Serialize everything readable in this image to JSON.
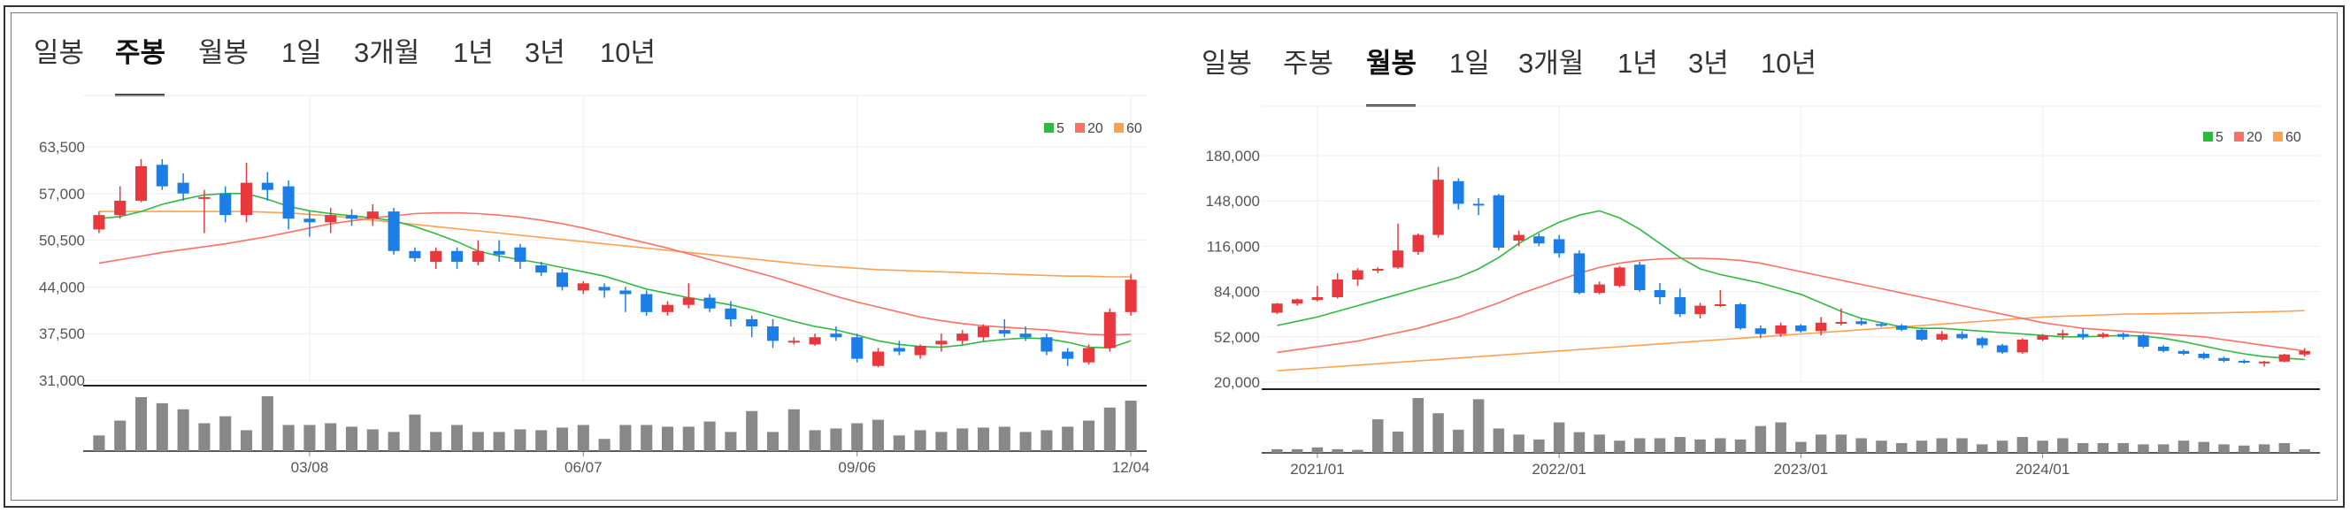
{
  "tabs": [
    "일봉",
    "주봉",
    "월봉",
    "1일",
    "3개월",
    "1년",
    "3년",
    "10년"
  ],
  "colors": {
    "up": "#e8383d",
    "down": "#1a7ee6",
    "ma5": "#30b940",
    "ma20": "#ff6f66",
    "ma60": "#ffa050",
    "volume": "#888888",
    "grid": "#eeeeee",
    "axis": "#222222"
  },
  "chart_data": [
    {
      "type": "candlestick",
      "period": "주봉",
      "active_tab": "주봉",
      "legend": [
        "5",
        "20",
        "60"
      ],
      "y_ticks": [
        "63,500",
        "57,000",
        "50,500",
        "44,000",
        "37,500",
        "31,000"
      ],
      "ylim": [
        31000,
        63500
      ],
      "x_ticks": [
        {
          "label": "03/08",
          "index": 10
        },
        {
          "label": "06/07",
          "index": 23
        },
        {
          "label": "09/06",
          "index": 36
        },
        {
          "label": "12/04",
          "index": 49
        }
      ],
      "ohlc": [
        [
          52000,
          54500,
          51500,
          54000
        ],
        [
          54000,
          58000,
          53500,
          56000
        ],
        [
          56000,
          61800,
          55800,
          60800
        ],
        [
          61000,
          61800,
          57500,
          58000
        ],
        [
          58500,
          59800,
          56000,
          57000
        ],
        [
          56500,
          57500,
          51500,
          56500
        ],
        [
          57000,
          58000,
          53000,
          54000
        ],
        [
          54000,
          61300,
          53000,
          58500
        ],
        [
          58500,
          60000,
          56000,
          57500
        ],
        [
          58000,
          58800,
          52000,
          53500
        ],
        [
          53500,
          54500,
          51000,
          53000
        ],
        [
          53000,
          55000,
          51500,
          54000
        ],
        [
          54000,
          54800,
          52500,
          53500
        ],
        [
          53500,
          55500,
          52500,
          54500
        ],
        [
          54500,
          55000,
          48500,
          49000
        ],
        [
          49000,
          49500,
          47500,
          48000
        ],
        [
          47500,
          49500,
          46500,
          49000
        ],
        [
          49000,
          49500,
          46500,
          47500
        ],
        [
          47500,
          50500,
          47000,
          49000
        ],
        [
          49000,
          50500,
          47500,
          48500
        ],
        [
          49500,
          50000,
          46500,
          47500
        ],
        [
          47000,
          47500,
          45500,
          46000
        ],
        [
          46000,
          46500,
          43500,
          44000
        ],
        [
          43500,
          44800,
          43000,
          44500
        ],
        [
          44000,
          44500,
          42500,
          43500
        ],
        [
          43500,
          44000,
          40500,
          43000
        ],
        [
          43000,
          43500,
          40000,
          40500
        ],
        [
          40500,
          42000,
          40000,
          41500
        ],
        [
          41500,
          44500,
          41000,
          42500
        ],
        [
          42500,
          43000,
          40500,
          41000
        ],
        [
          41000,
          42000,
          38500,
          39500
        ],
        [
          39500,
          40000,
          37000,
          38500
        ],
        [
          38500,
          39500,
          35500,
          36500
        ],
        [
          36500,
          37000,
          36000,
          36500
        ],
        [
          36000,
          37500,
          35800,
          37000
        ],
        [
          37500,
          38500,
          36500,
          37000
        ],
        [
          37000,
          37500,
          33500,
          34000
        ],
        [
          33000,
          35500,
          32800,
          35000
        ],
        [
          35500,
          36500,
          34500,
          35000
        ],
        [
          34500,
          36000,
          34000,
          35800
        ],
        [
          36000,
          37500,
          35000,
          36500
        ],
        [
          36500,
          38000,
          36000,
          37500
        ],
        [
          37000,
          38800,
          36500,
          38500
        ],
        [
          38000,
          39500,
          37000,
          37500
        ],
        [
          37500,
          38500,
          36500,
          37000
        ],
        [
          37000,
          37500,
          34500,
          35000
        ],
        [
          35000,
          35500,
          33000,
          34000
        ],
        [
          33500,
          36000,
          33200,
          35500
        ],
        [
          35500,
          41000,
          35000,
          40500
        ],
        [
          40500,
          45800,
          40000,
          45000
        ]
      ],
      "ma5": [
        53500,
        53800,
        54500,
        55500,
        56200,
        56800,
        57000,
        57000,
        56200,
        55200,
        54600,
        54200,
        53900,
        53600,
        53200,
        52400,
        51400,
        50300,
        49000,
        48300,
        47800,
        47300,
        46700,
        46100,
        45500,
        44600,
        43700,
        43100,
        42500,
        42000,
        41500,
        40800,
        40000,
        39200,
        38500,
        38000,
        37300,
        36500,
        36000,
        35700,
        35600,
        35900,
        36400,
        36700,
        36900,
        36800,
        36300,
        35600,
        35500,
        36500
      ],
      "ma20": [
        47300,
        47800,
        48300,
        48800,
        49200,
        49600,
        50000,
        50500,
        51000,
        51600,
        52200,
        52800,
        53200,
        53600,
        53900,
        54200,
        54300,
        54300,
        54200,
        54000,
        53700,
        53300,
        52800,
        52200,
        51500,
        50800,
        50100,
        49400,
        48600,
        47800,
        47000,
        46200,
        45400,
        44500,
        43600,
        42700,
        41900,
        41200,
        40500,
        39800,
        39300,
        38900,
        38600,
        38400,
        38200,
        38000,
        37700,
        37400,
        37300,
        37400
      ],
      "ma60": [
        54500,
        54500,
        54500,
        54500,
        54500,
        54500,
        54500,
        54500,
        54400,
        54300,
        54100,
        53900,
        53600,
        53300,
        53000,
        52700,
        52400,
        52100,
        51800,
        51500,
        51200,
        50900,
        50600,
        50300,
        50000,
        49700,
        49400,
        49100,
        48800,
        48500,
        48200,
        47900,
        47600,
        47300,
        47000,
        46800,
        46600,
        46400,
        46300,
        46200,
        46100,
        46000,
        45900,
        45800,
        45700,
        45600,
        45500,
        45500,
        45400,
        45400
      ],
      "volume": [
        18,
        35,
        62,
        55,
        48,
        32,
        40,
        24,
        63,
        30,
        30,
        32,
        28,
        25,
        22,
        42,
        22,
        30,
        22,
        22,
        25,
        24,
        27,
        30,
        14,
        30,
        30,
        28,
        28,
        34,
        22,
        46,
        22,
        48,
        24,
        26,
        32,
        36,
        18,
        24,
        22,
        26,
        27,
        28,
        22,
        24,
        28,
        35,
        50,
        58
      ]
    },
    {
      "type": "candlestick",
      "period": "월봉",
      "active_tab": "월봉",
      "legend": [
        "5",
        "20",
        "60"
      ],
      "y_ticks": [
        "180,000",
        "148,000",
        "116,000",
        "84,000",
        "52,000",
        "20,000"
      ],
      "ylim": [
        20000,
        180000
      ],
      "x_ticks": [
        {
          "label": "2021/01",
          "index": 2
        },
        {
          "label": "2022/01",
          "index": 14
        },
        {
          "label": "2023/01",
          "index": 26
        },
        {
          "label": "2024/01",
          "index": 38
        }
      ],
      "ohlc": [
        [
          69000,
          76000,
          68000,
          75500
        ],
        [
          75500,
          79000,
          74000,
          78500
        ],
        [
          78000,
          88000,
          77000,
          80000
        ],
        [
          80000,
          97000,
          79000,
          92500
        ],
        [
          92500,
          100500,
          88000,
          99000
        ],
        [
          100000,
          101000,
          97000,
          100000
        ],
        [
          101000,
          132000,
          100000,
          113000
        ],
        [
          112000,
          125000,
          110000,
          124000
        ],
        [
          124000,
          172000,
          122000,
          163000
        ],
        [
          162000,
          164000,
          142000,
          146000
        ],
        [
          146000,
          150000,
          138000,
          145000
        ],
        [
          152000,
          153000,
          113000,
          115000
        ],
        [
          120000,
          127000,
          116000,
          124000
        ],
        [
          123000,
          125000,
          116000,
          118000
        ],
        [
          121000,
          124000,
          108000,
          111000
        ],
        [
          111000,
          113000,
          82000,
          83000
        ],
        [
          83000,
          91000,
          82000,
          89000
        ],
        [
          88000,
          102000,
          87000,
          101000
        ],
        [
          103000,
          105000,
          84000,
          85000
        ],
        [
          85000,
          90000,
          75000,
          80000
        ],
        [
          80000,
          86000,
          66000,
          68000
        ],
        [
          68000,
          76000,
          65000,
          74000
        ],
        [
          74000,
          85000,
          73000,
          75000
        ],
        [
          75000,
          76000,
          57000,
          58000
        ],
        [
          58000,
          60000,
          51000,
          54000
        ],
        [
          54000,
          62000,
          52000,
          60000
        ],
        [
          60000,
          61000,
          55000,
          56000
        ],
        [
          56000,
          66000,
          53000,
          62000
        ],
        [
          62000,
          72000,
          60000,
          62500
        ],
        [
          63000,
          65000,
          60000,
          61000
        ],
        [
          61000,
          62500,
          59000,
          60000
        ],
        [
          60000,
          61000,
          56000,
          57000
        ],
        [
          57000,
          58000,
          49000,
          50000
        ],
        [
          50000,
          56000,
          49000,
          54000
        ],
        [
          54000,
          56000,
          50000,
          51000
        ],
        [
          51000,
          52000,
          44000,
          46000
        ],
        [
          46000,
          47000,
          40000,
          41000
        ],
        [
          41000,
          51000,
          40000,
          50000
        ],
        [
          50000,
          54000,
          49000,
          53000
        ],
        [
          53000,
          57000,
          50000,
          54500
        ],
        [
          54000,
          58000,
          50000,
          52000
        ],
        [
          52000,
          55000,
          51000,
          54000
        ],
        [
          54000,
          55000,
          50000,
          52000
        ],
        [
          53000,
          54000,
          44000,
          45000
        ],
        [
          45000,
          46000,
          41000,
          42000
        ],
        [
          42000,
          43000,
          39000,
          40000
        ],
        [
          40000,
          41000,
          36000,
          37000
        ],
        [
          37000,
          38000,
          34000,
          35000
        ],
        [
          35000,
          36000,
          33000,
          34000
        ],
        [
          34000,
          35000,
          31000,
          34500
        ],
        [
          34500,
          40000,
          34000,
          39500
        ],
        [
          39500,
          44000,
          38000,
          42000
        ]
      ],
      "ma5": [
        60000,
        63000,
        66000,
        70000,
        74000,
        78000,
        82000,
        86000,
        90000,
        94000,
        100000,
        108000,
        118000,
        126000,
        133000,
        138000,
        141000,
        136000,
        128000,
        118000,
        108000,
        100000,
        96000,
        93000,
        90000,
        86000,
        82000,
        76000,
        70000,
        65000,
        62000,
        59000,
        58000,
        58000,
        57000,
        56000,
        55000,
        54000,
        53000,
        52000,
        52000,
        52500,
        53000,
        52500,
        51000,
        48500,
        45500,
        42500,
        40000,
        38000,
        37000,
        36000
      ],
      "ma20": [
        41000,
        43000,
        45000,
        47000,
        49000,
        52000,
        55000,
        58000,
        62000,
        66000,
        71000,
        76000,
        82000,
        87000,
        92000,
        97000,
        101000,
        104000,
        106000,
        107000,
        107500,
        107500,
        107000,
        106000,
        104000,
        101000,
        98000,
        95000,
        92000,
        89000,
        86000,
        83000,
        80000,
        77000,
        74000,
        71000,
        68000,
        65000,
        62000,
        60000,
        58000,
        57000,
        56000,
        55000,
        54000,
        53000,
        52000,
        50000,
        48000,
        46000,
        44000,
        42000
      ],
      "ma60": [
        28000,
        29000,
        30000,
        31000,
        32000,
        33000,
        34000,
        35000,
        36000,
        37000,
        38000,
        39000,
        40000,
        41000,
        42000,
        43000,
        44000,
        45000,
        46000,
        47000,
        48000,
        49000,
        50000,
        51000,
        52000,
        53000,
        54000,
        55000,
        56000,
        57000,
        58000,
        59000,
        60000,
        61000,
        62000,
        63000,
        64000,
        65000,
        66000,
        66500,
        67000,
        67500,
        68000,
        68200,
        68400,
        68600,
        68800,
        69000,
        69300,
        69600,
        70000,
        70500
      ],
      "volume": [
        6,
        6,
        9,
        6,
        5,
        55,
        35,
        90,
        65,
        38,
        88,
        40,
        30,
        22,
        50,
        34,
        30,
        20,
        24,
        24,
        26,
        22,
        24,
        22,
        44,
        50,
        18,
        30,
        30,
        24,
        20,
        16,
        20,
        24,
        24,
        14,
        20,
        26,
        20,
        24,
        16,
        16,
        16,
        14,
        14,
        20,
        18,
        14,
        12,
        14,
        16,
        6
      ]
    }
  ]
}
